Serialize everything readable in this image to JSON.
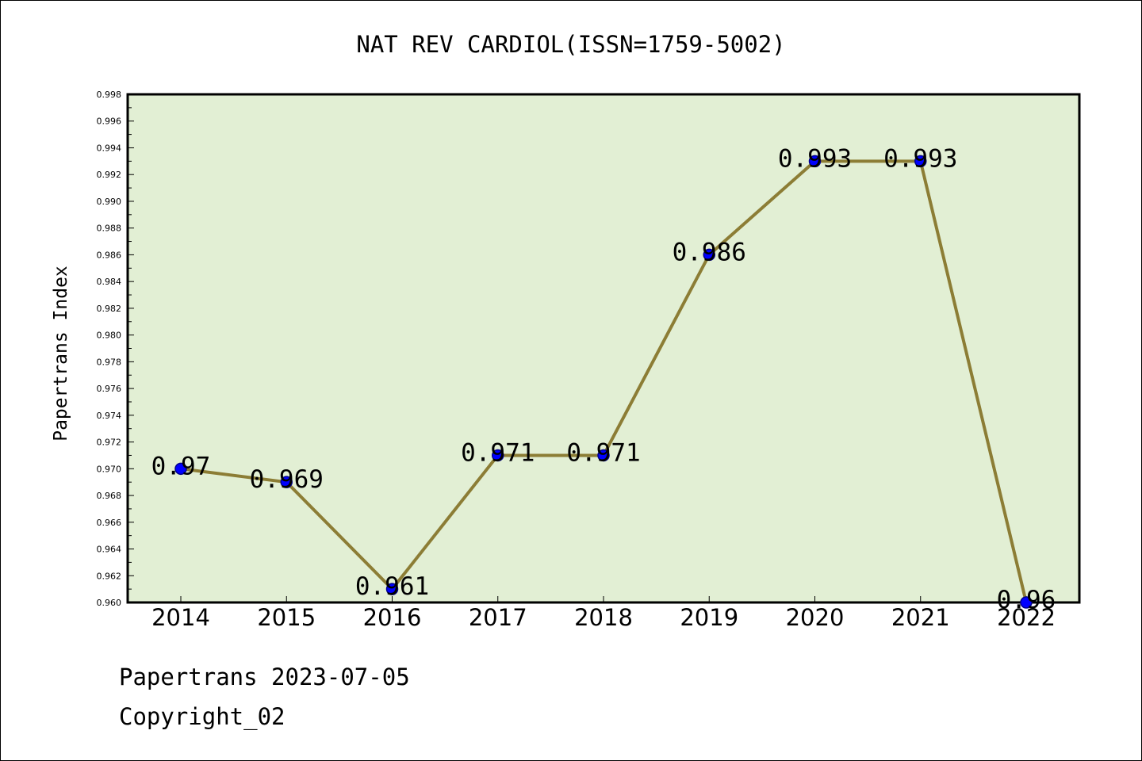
{
  "chart_data": {
    "type": "line",
    "title": "NAT REV CARDIOL(ISSN=1759-5002)",
    "xlabel": "",
    "ylabel": "Papertrans Index",
    "categories": [
      "2014",
      "2015",
      "2016",
      "2017",
      "2018",
      "2019",
      "2020",
      "2021",
      "2022"
    ],
    "values": [
      0.97,
      0.969,
      0.961,
      0.971,
      0.971,
      0.986,
      0.993,
      0.993,
      0.96
    ],
    "data_labels": [
      "0.97",
      "0.969",
      "0.961",
      "0.971",
      "0.971",
      "0.986",
      "0.993",
      "0.993",
      "0.96"
    ],
    "ylim": [
      0.96,
      0.998
    ],
    "yticks": [
      "0.960",
      "0.962",
      "0.964",
      "0.966",
      "0.968",
      "0.970",
      "0.972",
      "0.974",
      "0.976",
      "0.978",
      "0.980",
      "0.982",
      "0.984",
      "0.986",
      "0.988",
      "0.990",
      "0.992",
      "0.994",
      "0.996",
      "0.998"
    ],
    "grid": false,
    "legend": "none",
    "colors": {
      "plot_background": "#e2efd4",
      "line": "#8c7d35",
      "marker": "#0000ff",
      "marker_edge": "#00008b"
    }
  },
  "footer": {
    "date_line": "Papertrans 2023-07-05",
    "copyright_line": "Copyright_02"
  }
}
